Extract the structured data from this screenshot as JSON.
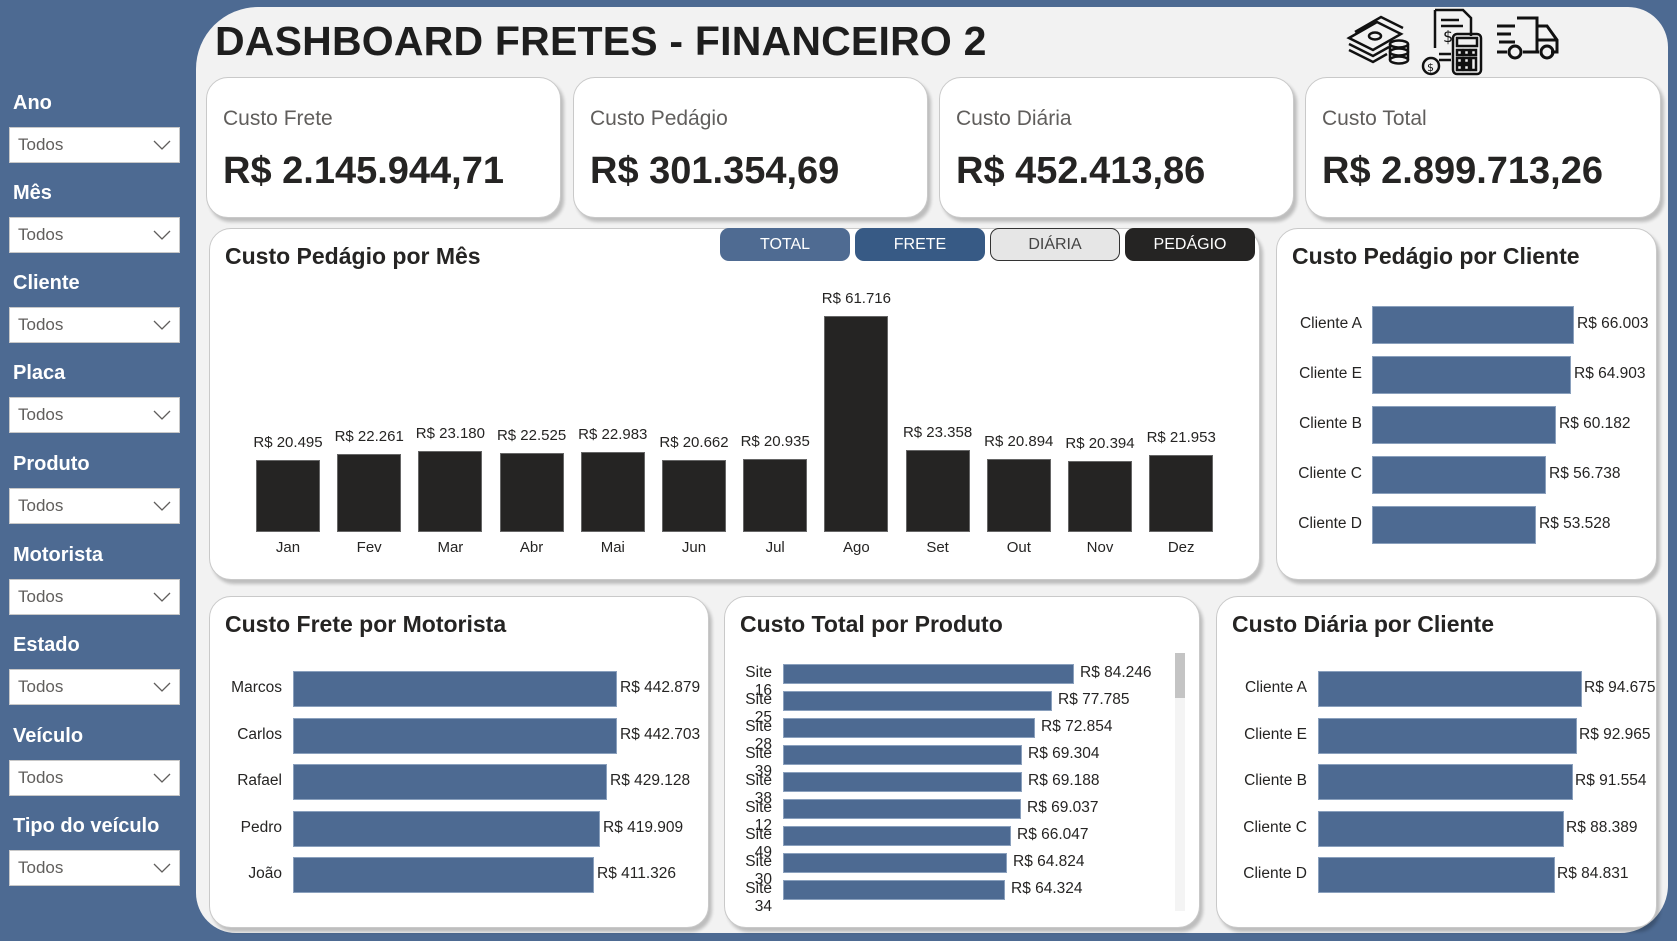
{
  "header": {
    "title": "DASHBOARD FRETES - FINANCEIRO 2",
    "icons": [
      "money-stack-icon",
      "invoice-calculator-icon",
      "delivery-truck-icon"
    ]
  },
  "colors": {
    "brand_blue": "#4d6a92",
    "bar_dark": "#252423",
    "bar_blue": "#4d6a92",
    "background": "#f2f2f2"
  },
  "filters": [
    {
      "label": "Ano",
      "value": "Todos"
    },
    {
      "label": "Mês",
      "value": "Todos"
    },
    {
      "label": "Cliente",
      "value": "Todos"
    },
    {
      "label": "Placa",
      "value": "Todos"
    },
    {
      "label": "Produto",
      "value": "Todos"
    },
    {
      "label": "Motorista",
      "value": "Todos"
    },
    {
      "label": "Estado",
      "value": "Todos"
    },
    {
      "label": "Veículo",
      "value": "Todos"
    },
    {
      "label": "Tipo do veículo",
      "value": "Todos"
    }
  ],
  "kpis": [
    {
      "label": "Custo Frete",
      "value": "R$ 2.145.944,71"
    },
    {
      "label": "Custo Pedágio",
      "value": "R$ 301.354,69"
    },
    {
      "label": "Custo Diária",
      "value": "R$ 452.413,86"
    },
    {
      "label": "Custo Total",
      "value": "R$ 2.899.713,26"
    }
  ],
  "toggle_buttons": [
    {
      "label": "TOTAL",
      "active": false
    },
    {
      "label": "FRETE",
      "active": false
    },
    {
      "label": "DIÁRIA",
      "active": false
    },
    {
      "label": "PEDÁGIO",
      "active": true
    }
  ],
  "panels": {
    "monthly": {
      "title": "Custo Pedágio por Mês"
    },
    "pedagio_cliente": {
      "title": "Custo Pedágio por Cliente"
    },
    "frete_motorista": {
      "title": "Custo Frete por Motorista"
    },
    "total_produto": {
      "title": "Custo Total por Produto"
    },
    "diaria_cliente": {
      "title": "Custo Diária por Cliente"
    }
  },
  "chart_data": [
    {
      "type": "bar",
      "title": "Custo Pedágio por Mês",
      "categories": [
        "Jan",
        "Fev",
        "Mar",
        "Abr",
        "Mai",
        "Jun",
        "Jul",
        "Ago",
        "Set",
        "Out",
        "Nov",
        "Dez"
      ],
      "values": [
        20495,
        22261,
        23180,
        22525,
        22983,
        20662,
        20935,
        61716,
        23358,
        20894,
        20394,
        21953
      ],
      "labels": [
        "R$ 20.495",
        "R$ 22.261",
        "R$ 23.180",
        "R$ 22.525",
        "R$ 22.983",
        "R$ 20.662",
        "R$ 20.935",
        "R$ 61.716",
        "R$ 23.358",
        "R$ 20.894",
        "R$ 20.394",
        "R$ 21.953"
      ],
      "xlabel": "",
      "ylabel": "",
      "grid": false
    },
    {
      "type": "bar",
      "orientation": "horizontal",
      "title": "Custo Pedágio por Cliente",
      "categories": [
        "Cliente A",
        "Cliente E",
        "Cliente B",
        "Cliente C",
        "Cliente D"
      ],
      "values": [
        66003,
        64903,
        60182,
        56738,
        53528
      ],
      "labels": [
        "R$ 66.003",
        "R$ 64.903",
        "R$ 60.182",
        "R$ 56.738",
        "R$ 53.528"
      ]
    },
    {
      "type": "bar",
      "orientation": "horizontal",
      "title": "Custo Frete por Motorista",
      "categories": [
        "Marcos",
        "Carlos",
        "Rafael",
        "Pedro",
        "João"
      ],
      "values": [
        442879,
        442703,
        429128,
        419909,
        411326
      ],
      "labels": [
        "R$ 442.879",
        "R$ 442.703",
        "R$ 429.128",
        "R$ 419.909",
        "R$ 411.326"
      ]
    },
    {
      "type": "bar",
      "orientation": "horizontal",
      "title": "Custo Total por Produto",
      "categories": [
        "Site 16",
        "Site 25",
        "Site 28",
        "Site 39",
        "Site 38",
        "Site 12",
        "Site 49",
        "Site 30",
        "Site 34"
      ],
      "values": [
        84246,
        77785,
        72854,
        69304,
        69188,
        69037,
        66047,
        64824,
        64324
      ],
      "labels": [
        "R$ 84.246",
        "R$ 77.785",
        "R$ 72.854",
        "R$ 69.304",
        "R$ 69.188",
        "R$ 69.037",
        "R$ 66.047",
        "R$ 64.824",
        "R$ 64.324"
      ]
    },
    {
      "type": "bar",
      "orientation": "horizontal",
      "title": "Custo Diária por Cliente",
      "categories": [
        "Cliente A",
        "Cliente E",
        "Cliente B",
        "Cliente C",
        "Cliente D"
      ],
      "values": [
        94675,
        92965,
        91554,
        88389,
        84831
      ],
      "labels": [
        "R$ 94.675",
        "R$ 92.965",
        "R$ 91.554",
        "R$ 88.389",
        "R$ 84.831"
      ]
    }
  ]
}
